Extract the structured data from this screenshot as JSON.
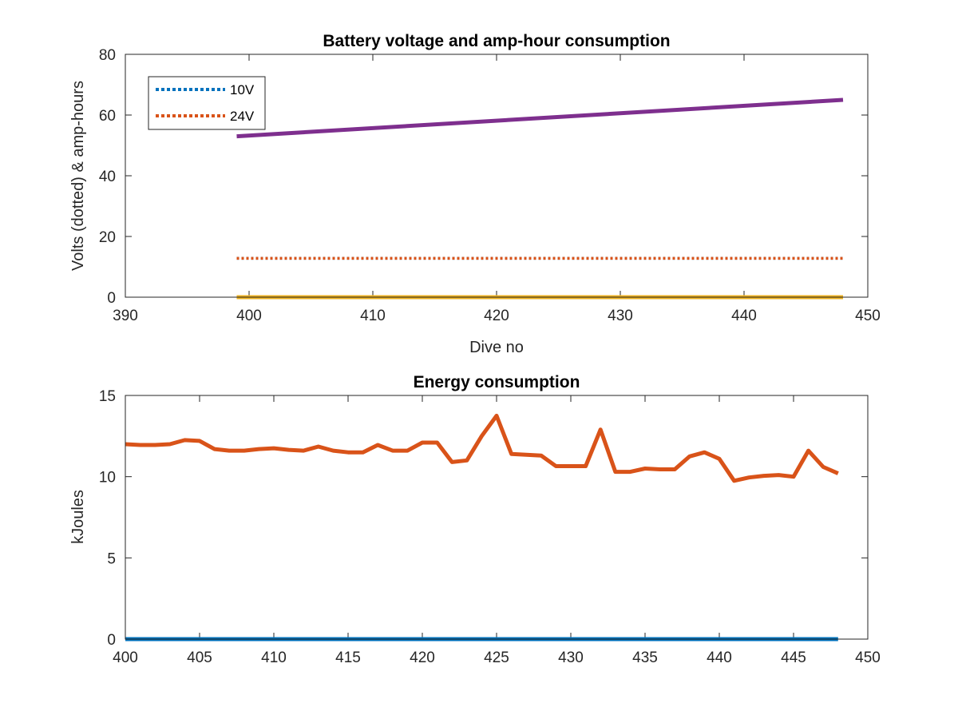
{
  "chart_data": [
    {
      "type": "line",
      "title": "Battery voltage and amp-hour consumption",
      "xlabel": "Dive no",
      "ylabel": "Volts (dotted) & amp-hours",
      "xlim": [
        390,
        450
      ],
      "ylim": [
        0,
        80
      ],
      "xticks": [
        390,
        400,
        410,
        420,
        430,
        440,
        450
      ],
      "yticks": [
        0,
        20,
        40,
        60,
        80
      ],
      "legend": {
        "location": "top-left",
        "entries": [
          "10V",
          "24V"
        ]
      },
      "series": [
        {
          "name": "10V",
          "style": "dotted",
          "color": "#0072BD",
          "x": [
            399,
            448
          ],
          "y": [
            12.8,
            12.8
          ]
        },
        {
          "name": "24V",
          "style": "dotted",
          "color": "#D95319",
          "x": [
            399,
            448
          ],
          "y": [
            12.8,
            12.8
          ]
        },
        {
          "style": "solid",
          "color": "#7E2F8E",
          "x": [
            399,
            448
          ],
          "y": [
            53,
            65
          ]
        },
        {
          "style": "solid",
          "color": "#EDB120",
          "x": [
            399,
            448
          ],
          "y": [
            0,
            0
          ]
        }
      ]
    },
    {
      "type": "line",
      "title": "Energy consumption",
      "xlabel": "",
      "ylabel": "kJoules",
      "xlim": [
        400,
        450
      ],
      "ylim": [
        0,
        15
      ],
      "xticks": [
        400,
        405,
        410,
        415,
        420,
        425,
        430,
        435,
        440,
        445,
        450
      ],
      "yticks": [
        0,
        5,
        10,
        15
      ],
      "series": [
        {
          "style": "solid",
          "color": "#D95319",
          "x": [
            400,
            401,
            402,
            403,
            404,
            405,
            406,
            407,
            408,
            409,
            410,
            411,
            412,
            413,
            414,
            415,
            416,
            417,
            418,
            419,
            420,
            421,
            422,
            423,
            424,
            425,
            426,
            427,
            428,
            429,
            430,
            431,
            432,
            433,
            434,
            435,
            436,
            437,
            438,
            439,
            440,
            441,
            442,
            443,
            444,
            445,
            446,
            447,
            448
          ],
          "y": [
            12.0,
            11.95,
            11.95,
            12.0,
            12.25,
            12.2,
            11.7,
            11.6,
            11.6,
            11.7,
            11.75,
            11.65,
            11.6,
            11.85,
            11.6,
            11.5,
            11.5,
            11.95,
            11.6,
            11.6,
            12.1,
            12.1,
            10.9,
            11.0,
            12.5,
            13.75,
            11.4,
            11.35,
            11.3,
            10.65,
            10.65,
            10.65,
            12.9,
            10.3,
            10.3,
            10.5,
            10.45,
            10.45,
            11.25,
            11.5,
            11.1,
            9.75,
            9.95,
            10.05,
            10.1,
            10.0,
            11.6,
            10.6,
            10.2
          ]
        },
        {
          "style": "solid",
          "color": "#0072BD",
          "x": [
            400,
            448
          ],
          "y": [
            0,
            0
          ]
        }
      ]
    }
  ]
}
